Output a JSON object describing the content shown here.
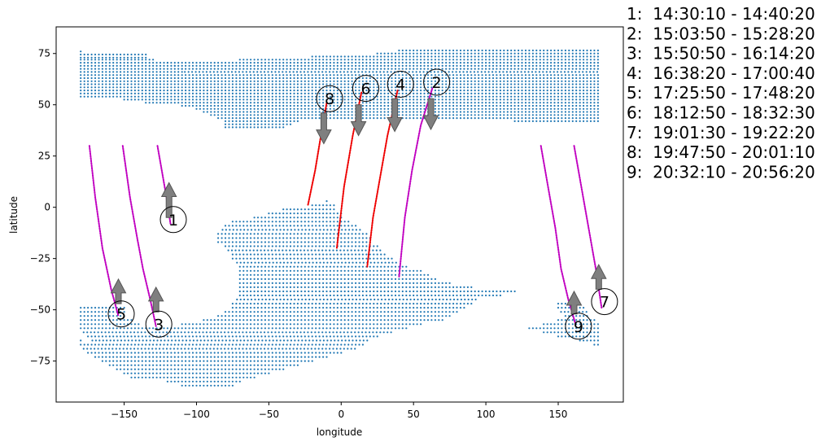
{
  "chart_data": {
    "type": "scatter",
    "xlabel": "longitude",
    "ylabel": "latitude",
    "xlim": [
      -197,
      195
    ],
    "ylim": [
      -95,
      88
    ],
    "x_ticks": [
      -150,
      -100,
      -50,
      0,
      50,
      100,
      150
    ],
    "y_ticks": [
      -75,
      -50,
      -25,
      0,
      25,
      50,
      75
    ],
    "x_tick_labels": [
      "−150",
      "−100",
      "−50",
      "0",
      "50",
      "100",
      "150"
    ],
    "y_tick_labels": [
      "−75",
      "−50",
      "−25",
      "0",
      "25",
      "50",
      "75"
    ],
    "grid": false,
    "legend_position": "right, outside plot",
    "colors": {
      "coverage": "#1f77b4",
      "track_magenta": "#c000c0",
      "track_red": "#ee0000",
      "arrow": "#7f7f7f"
    },
    "coverage_regions": [
      {
        "name": "north",
        "lat_step": 1.6,
        "lon_step": 2.5,
        "rows": [
          [
            76,
            -180,
            -180
          ],
          [
            74.5,
            -180,
            -135
          ],
          [
            73,
            -180,
            -135
          ],
          [
            72,
            -180,
            -130
          ],
          [
            70.5,
            -180,
            -120
          ],
          [
            69,
            -180,
            -115
          ],
          [
            67.5,
            -180,
            -110
          ],
          [
            66,
            -180,
            -108
          ],
          [
            64.5,
            -180,
            178
          ],
          [
            63,
            -180,
            178
          ],
          [
            61.5,
            -180,
            178
          ],
          [
            60,
            -180,
            178
          ],
          [
            58.5,
            -180,
            178
          ],
          [
            57,
            -180,
            178
          ],
          [
            55.5,
            -180,
            178
          ],
          [
            54,
            -180,
            178
          ],
          [
            52.5,
            -150,
            178
          ],
          [
            51,
            -135,
            178
          ],
          [
            49.5,
            -110,
            178
          ],
          [
            48,
            -100,
            178
          ],
          [
            46.5,
            -95,
            178
          ],
          [
            45,
            -90,
            178
          ],
          [
            43.5,
            -85,
            178
          ],
          [
            42,
            -80,
            -30
          ],
          [
            42,
            120,
            178
          ],
          [
            40.5,
            -80,
            -35
          ],
          [
            39,
            -80,
            -40
          ],
          [
            66,
            -108,
            178
          ],
          [
            67.5,
            -110,
            178
          ],
          [
            69,
            -115,
            178
          ],
          [
            70.5,
            -120,
            178
          ],
          [
            72,
            -70,
            178
          ],
          [
            73.5,
            -20,
            178
          ],
          [
            75,
            25,
            178
          ],
          [
            76.5,
            40,
            178
          ]
        ]
      },
      {
        "name": "south",
        "lat_step": 1.8,
        "lon_step": 2.5,
        "rows": [
          [
            3,
            -10,
            -8
          ],
          [
            1,
            -20,
            -5
          ],
          [
            -1,
            -40,
            -5
          ],
          [
            -3,
            -50,
            0
          ],
          [
            -5,
            -60,
            2
          ],
          [
            -7,
            -75,
            5
          ],
          [
            -9,
            -80,
            10
          ],
          [
            -11,
            -82,
            15
          ],
          [
            -13,
            -85,
            18
          ],
          [
            -15,
            -85,
            20
          ],
          [
            -17,
            -85,
            22
          ],
          [
            -19,
            -80,
            25
          ],
          [
            -21,
            -78,
            28
          ],
          [
            -23,
            -75,
            30
          ],
          [
            -25,
            -75,
            35
          ],
          [
            -27,
            -72,
            40
          ],
          [
            -29,
            -70,
            45
          ],
          [
            -31,
            -70,
            55
          ],
          [
            -33,
            -70,
            60
          ],
          [
            -35,
            -70,
            65
          ],
          [
            -37,
            -70,
            75
          ],
          [
            -39,
            -70,
            90
          ],
          [
            -41,
            -70,
            120
          ],
          [
            -43,
            -70,
            110
          ],
          [
            -45,
            -72,
            95
          ],
          [
            -47,
            -75,
            90
          ],
          [
            -49,
            -180,
            -150
          ],
          [
            -49,
            -75,
            85
          ],
          [
            -51,
            -180,
            -150
          ],
          [
            -51,
            -80,
            80
          ],
          [
            -53,
            -180,
            -148
          ],
          [
            -53,
            -85,
            75
          ],
          [
            -55,
            -180,
            -145
          ],
          [
            -55,
            -95,
            70
          ],
          [
            -57,
            -180,
            -140
          ],
          [
            -57,
            -110,
            55
          ],
          [
            -59,
            -180,
            45
          ],
          [
            -61,
            -178,
            35
          ],
          [
            -63,
            -175,
            25
          ],
          [
            -65,
            -180,
            -178
          ],
          [
            -65,
            -172,
            20
          ],
          [
            -67,
            -180,
            15
          ],
          [
            -69,
            -178,
            10
          ],
          [
            -71,
            -175,
            0
          ],
          [
            -73,
            -170,
            -10
          ],
          [
            -75,
            -165,
            -20
          ],
          [
            -77,
            -160,
            -30
          ],
          [
            -79,
            -155,
            -40
          ],
          [
            -81,
            -150,
            -50
          ],
          [
            -83,
            -145,
            -60
          ],
          [
            -85,
            -120,
            -70
          ],
          [
            -87,
            -110,
            -75
          ],
          [
            -47,
            150,
            160
          ],
          [
            -49,
            150,
            168
          ],
          [
            -51,
            152,
            170
          ],
          [
            -53,
            155,
            172
          ],
          [
            -55,
            150,
            175
          ],
          [
            -57,
            140,
            178
          ],
          [
            -59,
            130,
            178
          ],
          [
            -61,
            140,
            178
          ],
          [
            -63,
            150,
            178
          ],
          [
            -65,
            165,
            178
          ],
          [
            -67,
            175,
            178
          ]
        ]
      }
    ],
    "tracks": [
      {
        "id": "1",
        "color": "magenta",
        "points": [
          [
            -127,
            30
          ],
          [
            -124,
            18
          ],
          [
            -121,
            6
          ],
          [
            -118,
            -8
          ]
        ]
      },
      {
        "id": "2",
        "color": "magenta",
        "points": [
          [
            63,
            58
          ],
          [
            55,
            40
          ],
          [
            49,
            18
          ],
          [
            44,
            -5
          ],
          [
            40,
            -34
          ]
        ]
      },
      {
        "id": "3",
        "color": "magenta",
        "points": [
          [
            -151,
            30
          ],
          [
            -146,
            5
          ],
          [
            -141,
            -15
          ],
          [
            -137,
            -30
          ],
          [
            -132,
            -45
          ],
          [
            -128,
            -58
          ]
        ]
      },
      {
        "id": "4",
        "color": "red",
        "points": [
          [
            39,
            57
          ],
          [
            32,
            35
          ],
          [
            27,
            15
          ],
          [
            22,
            -5
          ],
          [
            18,
            -29
          ]
        ]
      },
      {
        "id": "5",
        "color": "magenta",
        "points": [
          [
            -174,
            30
          ],
          [
            -170,
            5
          ],
          [
            -165,
            -20
          ],
          [
            -159,
            -40
          ],
          [
            -154,
            -53
          ]
        ]
      },
      {
        "id": "6",
        "color": "red",
        "points": [
          [
            14,
            56
          ],
          [
            8,
            35
          ],
          [
            2,
            10
          ],
          [
            -3,
            -20
          ]
        ]
      },
      {
        "id": "7",
        "color": "magenta",
        "points": [
          [
            161,
            30
          ],
          [
            166,
            10
          ],
          [
            171,
            -10
          ],
          [
            176,
            -30
          ],
          [
            180,
            -49
          ]
        ]
      },
      {
        "id": "8",
        "color": "red",
        "points": [
          [
            -10,
            51
          ],
          [
            -14,
            35
          ],
          [
            -18,
            18
          ],
          [
            -23,
            1
          ]
        ]
      },
      {
        "id": "9",
        "color": "magenta",
        "points": [
          [
            138,
            30
          ],
          [
            143,
            10
          ],
          [
            148,
            -10
          ],
          [
            152,
            -30
          ],
          [
            157,
            -45
          ],
          [
            162,
            -57
          ]
        ]
      }
    ],
    "arrows": [
      {
        "id": "1",
        "direction": "up",
        "lon": -119,
        "lat_from": -5,
        "lat_to": 12
      },
      {
        "id": "2",
        "direction": "down",
        "lon": 62,
        "lat_from": 53,
        "lat_to": 38
      },
      {
        "id": "3",
        "direction": "up",
        "lon": -128,
        "lat_from": -51,
        "lat_to": -39
      },
      {
        "id": "4",
        "direction": "down",
        "lon": 37,
        "lat_from": 53,
        "lat_to": 37
      },
      {
        "id": "5",
        "direction": "up",
        "lon": -154,
        "lat_from": -47,
        "lat_to": -35
      },
      {
        "id": "6",
        "direction": "down",
        "lon": 12,
        "lat_from": 50,
        "lat_to": 35
      },
      {
        "id": "7",
        "direction": "up",
        "lon": 178,
        "lat_from": -40,
        "lat_to": -28
      },
      {
        "id": "8",
        "direction": "down",
        "lon": -12,
        "lat_from": 46,
        "lat_to": 31
      },
      {
        "id": "9",
        "direction": "up",
        "lon": 161,
        "lat_from": -52,
        "lat_to": -41
      }
    ],
    "markers": [
      {
        "label": "1",
        "lon": -116,
        "lat": -6
      },
      {
        "label": "2",
        "lon": 66,
        "lat": 61
      },
      {
        "label": "3",
        "lon": -126,
        "lat": -57
      },
      {
        "label": "4",
        "lon": 41,
        "lat": 60
      },
      {
        "label": "5",
        "lon": -152,
        "lat": -52
      },
      {
        "label": "6",
        "lon": 17,
        "lat": 58
      },
      {
        "label": "7",
        "lon": 182,
        "lat": -46
      },
      {
        "label": "8",
        "lon": -8,
        "lat": 53
      },
      {
        "label": "9",
        "lon": 164,
        "lat": -58
      }
    ],
    "legend": [
      "1:  14:30:10 - 14:40:20",
      "2:  15:03:50 - 15:28:20",
      "3:  15:50:50 - 16:14:20",
      "4:  16:38:20 - 17:00:40",
      "5:  17:25:50 - 17:48:20",
      "6:  18:12:50 - 18:32:30",
      "7:  19:01:30 - 19:22:20",
      "8:  19:47:50 - 20:01:10",
      "9:  20:32:10 - 20:56:20"
    ]
  }
}
